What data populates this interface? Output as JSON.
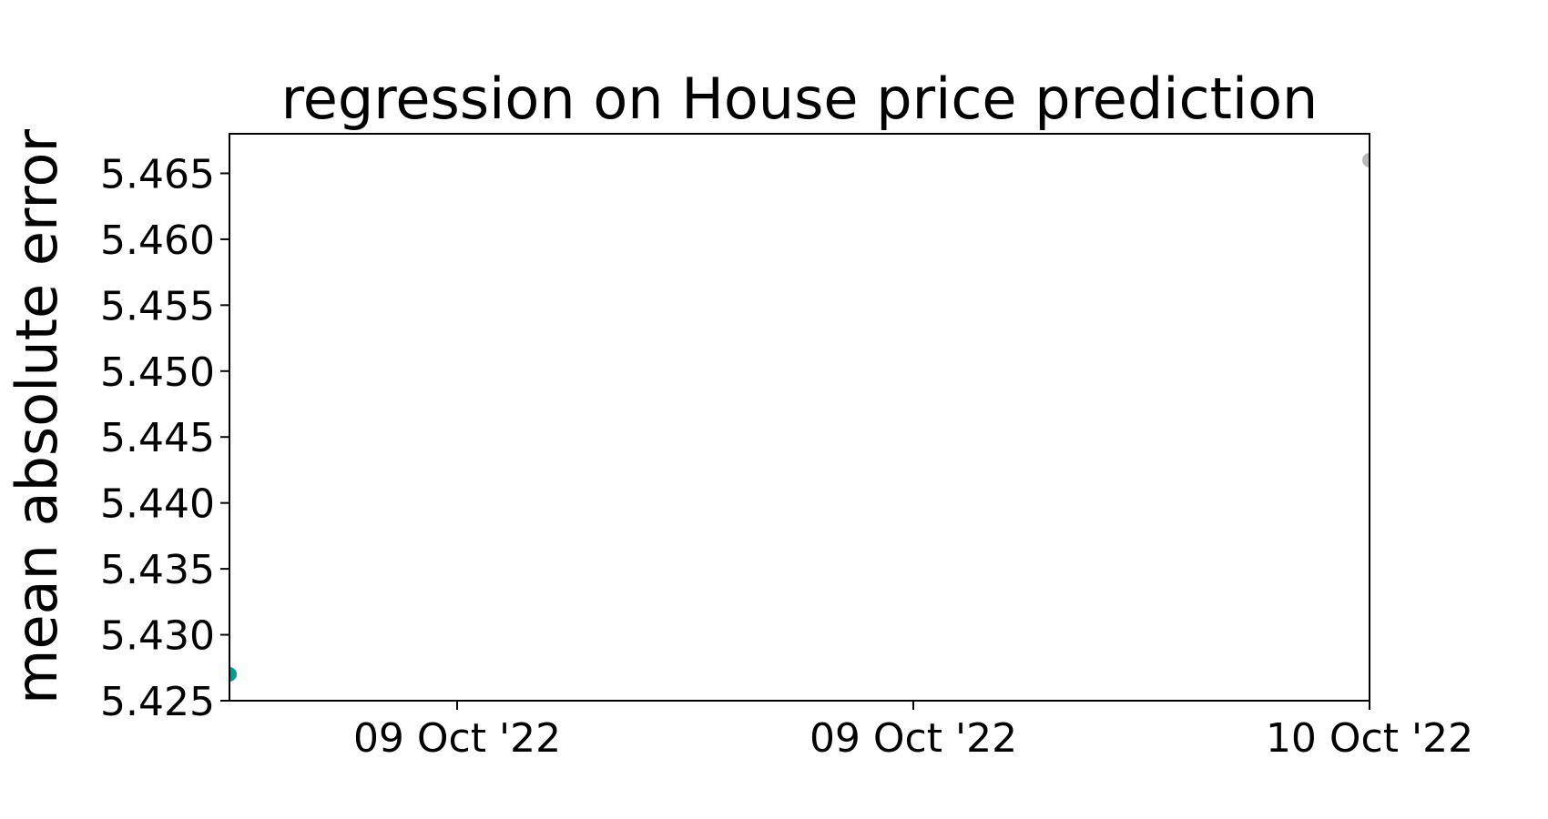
{
  "chart_data": {
    "type": "scatter",
    "title": "regression on House price prediction",
    "xlabel": "",
    "ylabel": "mean absolute error",
    "x_ticks": [
      "09 Oct '22",
      "09 Oct '22",
      "10 Oct '22"
    ],
    "y_ticks": [
      "5.425",
      "5.430",
      "5.435",
      "5.440",
      "5.445",
      "5.450",
      "5.455",
      "5.460",
      "5.465"
    ],
    "ylim": [
      5.425,
      5.468
    ],
    "grid": false,
    "series": [
      {
        "points": [
          {
            "x": "09 Oct '22",
            "y": 5.427,
            "color": "#009e8f"
          },
          {
            "x": "10 Oct '22",
            "y": 5.466,
            "color": "#b8b8b8"
          }
        ]
      }
    ]
  }
}
